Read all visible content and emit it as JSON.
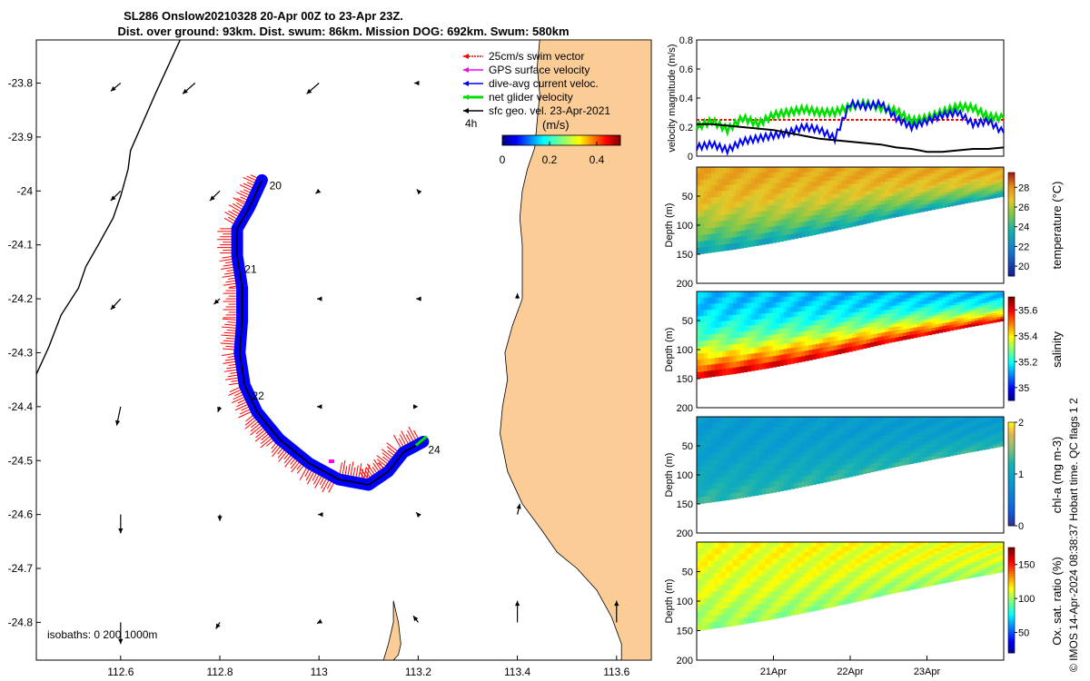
{
  "title": {
    "line1": "SL286 Onslow20210328 20-Apr 00Z to 23-Apr 23Z.",
    "line2": "Dist. over ground: 93km. Dist. swum: 86km. Mission DOG: 692km. Swum: 580km"
  },
  "chart_data": [
    {
      "type": "map",
      "name": "glider-track-map",
      "xlim": [
        112.43,
        113.67
      ],
      "ylim": [
        -24.87,
        -23.72
      ],
      "x_ticks": [
        "112.6",
        "112.8",
        "113",
        "113.2",
        "113.4",
        "113.6"
      ],
      "x_tick_values": [
        112.6,
        112.8,
        113.0,
        113.2,
        113.4,
        113.6
      ],
      "y_ticks": [
        "-23.8",
        "-23.9",
        "-24",
        "-24.1",
        "-24.2",
        "-24.3",
        "-24.4",
        "-24.5",
        "-24.6",
        "-24.7",
        "-24.8"
      ],
      "y_tick_values": [
        -23.8,
        -23.9,
        -24.0,
        -24.1,
        -24.2,
        -24.3,
        -24.4,
        -24.5,
        -24.6,
        -24.7,
        -24.8
      ],
      "track": [
        [
          112.885,
          -23.98
        ],
        [
          112.86,
          -24.03
        ],
        [
          112.835,
          -24.07
        ],
        [
          112.835,
          -24.12
        ],
        [
          112.845,
          -24.18
        ],
        [
          112.845,
          -24.24
        ],
        [
          112.84,
          -24.3
        ],
        [
          112.85,
          -24.36
        ],
        [
          112.875,
          -24.41
        ],
        [
          112.92,
          -24.46
        ],
        [
          112.98,
          -24.505
        ],
        [
          113.04,
          -24.535
        ],
        [
          113.1,
          -24.545
        ],
        [
          113.14,
          -24.52
        ],
        [
          113.17,
          -24.485
        ],
        [
          113.21,
          -24.465
        ]
      ],
      "day_labels": [
        {
          "text": "20",
          "lon": 112.9,
          "lat": -23.99
        },
        {
          "text": "21",
          "lon": 112.85,
          "lat": -24.145
        },
        {
          "text": "22",
          "lon": 112.865,
          "lat": -24.38
        },
        {
          "text": "24",
          "lon": 113.22,
          "lat": -24.48
        }
      ],
      "isobath_line": [
        [
          112.72,
          -23.72
        ],
        [
          112.67,
          -23.82
        ],
        [
          112.62,
          -23.925
        ],
        [
          112.615,
          -23.96
        ],
        [
          112.6,
          -24.01
        ],
        [
          112.585,
          -24.05
        ],
        [
          112.555,
          -24.1
        ],
        [
          112.53,
          -24.14
        ],
        [
          112.515,
          -24.18
        ],
        [
          112.48,
          -24.23
        ],
        [
          112.455,
          -24.29
        ],
        [
          112.43,
          -24.34
        ],
        [
          112.43,
          -24.4
        ]
      ],
      "coast_poly": [
        [
          113.67,
          -23.72
        ],
        [
          113.445,
          -23.72
        ],
        [
          113.44,
          -23.77
        ],
        [
          113.445,
          -23.82
        ],
        [
          113.44,
          -23.87
        ],
        [
          113.435,
          -23.92
        ],
        [
          113.42,
          -23.96
        ],
        [
          113.41,
          -24.0
        ],
        [
          113.405,
          -24.05
        ],
        [
          113.41,
          -24.1
        ],
        [
          113.41,
          -24.15
        ],
        [
          113.41,
          -24.2
        ],
        [
          113.39,
          -24.25
        ],
        [
          113.375,
          -24.3
        ],
        [
          113.38,
          -24.35
        ],
        [
          113.37,
          -24.4
        ],
        [
          113.365,
          -24.45
        ],
        [
          113.38,
          -24.52
        ],
        [
          113.41,
          -24.58
        ],
        [
          113.45,
          -24.63
        ],
        [
          113.48,
          -24.67
        ],
        [
          113.52,
          -24.7
        ],
        [
          113.56,
          -24.74
        ],
        [
          113.59,
          -24.79
        ],
        [
          113.61,
          -24.84
        ],
        [
          113.61,
          -24.87
        ],
        [
          113.67,
          -24.87
        ]
      ],
      "island_poly": [
        [
          113.15,
          -24.76
        ],
        [
          113.16,
          -24.8
        ],
        [
          113.165,
          -24.84
        ],
        [
          113.16,
          -24.86
        ],
        [
          113.15,
          -24.87
        ],
        [
          113.13,
          -24.87
        ],
        [
          113.14,
          -24.84
        ],
        [
          113.15,
          -24.8
        ]
      ],
      "sfc_vectors": [
        [
          112.6,
          -23.8,
          -0.02,
          -0.015
        ],
        [
          112.75,
          -23.8,
          -0.025,
          -0.02
        ],
        [
          113.0,
          -23.8,
          -0.025,
          -0.02
        ],
        [
          113.2,
          -23.8,
          -0.008,
          0.0
        ],
        [
          112.6,
          -24.0,
          -0.02,
          -0.018
        ],
        [
          112.8,
          -24.0,
          -0.02,
          -0.018
        ],
        [
          113.0,
          -24.0,
          -0.007,
          -0.005
        ],
        [
          113.2,
          -24.0,
          -0.003,
          0.003
        ],
        [
          112.6,
          -24.2,
          -0.02,
          -0.02
        ],
        [
          112.8,
          -24.2,
          -0.012,
          -0.01
        ],
        [
          113.0,
          -24.2,
          -0.004,
          0.0
        ],
        [
          113.2,
          -24.2,
          -0.004,
          0.0
        ],
        [
          113.4,
          -24.2,
          0.0,
          0.01
        ],
        [
          112.6,
          -24.4,
          -0.008,
          -0.035
        ],
        [
          112.8,
          -24.4,
          -0.004,
          -0.01
        ],
        [
          113.0,
          -24.4,
          -0.004,
          0.0
        ],
        [
          113.2,
          -24.4,
          0.0,
          0.0
        ],
        [
          112.6,
          -24.6,
          0.0,
          -0.035
        ],
        [
          112.8,
          -24.6,
          0.0,
          -0.012
        ],
        [
          113.0,
          -24.6,
          -0.002,
          0.0
        ],
        [
          113.2,
          -24.6,
          -0.004,
          0.004
        ],
        [
          113.4,
          -24.6,
          0.005,
          0.02
        ],
        [
          112.6,
          -24.8,
          0.0,
          -0.04
        ],
        [
          112.8,
          -24.8,
          -0.008,
          -0.012
        ],
        [
          113.0,
          -24.8,
          -0.004,
          -0.002
        ],
        [
          113.2,
          -24.8,
          -0.01,
          0.012
        ],
        [
          113.4,
          -24.8,
          0.0,
          0.04
        ],
        [
          113.6,
          -24.8,
          0.0,
          0.04
        ]
      ],
      "legend": [
        {
          "label": "25cm/s swim vector",
          "color": "#ff0000"
        },
        {
          "label": "GPS surface velocity",
          "color": "#ff00ff"
        },
        {
          "label": "dive-avg current veloc.",
          "color": "#0000ff"
        },
        {
          "label": "net glider velocity",
          "color": "#00e000"
        },
        {
          "label": "sfc geo. vel. 23-Apr-2021",
          "color": "#000000"
        }
      ],
      "legend_note": "4h",
      "colorbar": {
        "label": "(m/s)",
        "ticks": [
          "0",
          "0.2",
          "0.4"
        ],
        "tick_values": [
          0,
          0.2,
          0.4
        ],
        "range": [
          0,
          0.5
        ]
      },
      "isobaths_text": "isobaths: 0   200  1000m"
    },
    {
      "type": "line",
      "name": "velocity-timeseries",
      "ylabel": "velocity magnitude (m/s)",
      "ylim": [
        0,
        0.8
      ],
      "y_ticks": [
        "0",
        "0.2",
        "0.4",
        "0.6",
        "0.8"
      ],
      "y_tick_values": [
        0,
        0.2,
        0.4,
        0.6,
        0.8
      ],
      "xlim": [
        20.0,
        24.0
      ],
      "series": [
        {
          "name": "swim",
          "color": "#ff0000",
          "style": "dashed",
          "x": [
            20.0,
            24.0
          ],
          "values": [
            0.25,
            0.25
          ]
        },
        {
          "name": "net glider velocity",
          "color": "#00e000",
          "x": [
            20.0,
            20.2,
            20.4,
            20.6,
            20.8,
            21.0,
            21.2,
            21.4,
            21.6,
            21.8,
            22.0,
            22.2,
            22.4,
            22.6,
            22.8,
            23.0,
            23.2,
            23.4,
            23.6,
            23.8,
            24.0
          ],
          "values": [
            0.2,
            0.24,
            0.18,
            0.26,
            0.22,
            0.28,
            0.3,
            0.32,
            0.3,
            0.3,
            0.34,
            0.36,
            0.33,
            0.31,
            0.24,
            0.26,
            0.3,
            0.34,
            0.33,
            0.27,
            0.26
          ]
        },
        {
          "name": "dive-avg current veloc.",
          "color": "#0000ff",
          "x": [
            20.0,
            20.2,
            20.4,
            20.6,
            20.8,
            21.0,
            21.2,
            21.4,
            21.6,
            21.8,
            22.0,
            22.2,
            22.4,
            22.6,
            22.8,
            23.0,
            23.2,
            23.4,
            23.6,
            23.8,
            24.0
          ],
          "values": [
            0.06,
            0.08,
            0.04,
            0.1,
            0.12,
            0.14,
            0.16,
            0.2,
            0.18,
            0.12,
            0.36,
            0.34,
            0.36,
            0.26,
            0.2,
            0.24,
            0.28,
            0.3,
            0.22,
            0.24,
            0.16
          ]
        },
        {
          "name": "sfc geo. vel.",
          "color": "#000000",
          "x": [
            20.0,
            20.2,
            20.4,
            20.6,
            20.8,
            21.0,
            21.2,
            21.4,
            21.6,
            21.8,
            22.0,
            22.2,
            22.4,
            22.6,
            22.8,
            23.0,
            23.2,
            23.4,
            23.6,
            23.8,
            24.0
          ],
          "values": [
            0.22,
            0.22,
            0.21,
            0.2,
            0.19,
            0.18,
            0.16,
            0.14,
            0.12,
            0.11,
            0.1,
            0.09,
            0.08,
            0.06,
            0.05,
            0.03,
            0.03,
            0.04,
            0.05,
            0.05,
            0.06
          ]
        }
      ]
    },
    {
      "type": "heatmap",
      "name": "temperature-section",
      "ylabel": "Depth (m)",
      "colorbar_label": "temperature (°C)",
      "cb_ticks": [
        "28",
        "26",
        "24",
        "22",
        "20"
      ],
      "cb_tick_values": [
        28,
        26,
        24,
        22,
        20
      ],
      "cb_range": [
        19,
        29.5
      ],
      "y_ticks": [
        "50",
        "100",
        "150",
        "200"
      ],
      "y_tick_values": [
        50,
        100,
        150,
        200
      ],
      "depth_range": [
        0,
        200
      ],
      "colormap": "parula",
      "surface_value": 27.6,
      "bottom_value": 23.0
    },
    {
      "type": "heatmap",
      "name": "salinity-section",
      "ylabel": "Depth (m)",
      "colorbar_label": "salinity",
      "cb_ticks": [
        "35.6",
        "35.4",
        "35.2",
        "35"
      ],
      "cb_tick_values": [
        35.6,
        35.4,
        35.2,
        35.0
      ],
      "cb_range": [
        34.9,
        35.7
      ],
      "y_ticks": [
        "50",
        "100",
        "150",
        "200"
      ],
      "y_tick_values": [
        50,
        100,
        150,
        200
      ],
      "depth_range": [
        0,
        200
      ],
      "colormap": "jet",
      "surface_value": 35.15,
      "bottom_value": 35.65
    },
    {
      "type": "heatmap",
      "name": "chla-section",
      "ylabel": "Depth (m)",
      "colorbar_label": "chl-a (mg m-3)",
      "cb_ticks": [
        "2",
        "1",
        "0"
      ],
      "cb_tick_values": [
        2,
        1,
        0
      ],
      "cb_range": [
        0,
        2
      ],
      "y_ticks": [
        "50",
        "100",
        "150",
        "200"
      ],
      "y_tick_values": [
        50,
        100,
        150,
        200
      ],
      "depth_range": [
        0,
        200
      ],
      "colormap": "parula",
      "surface_value": 0.9,
      "bottom_value": 1.3
    },
    {
      "type": "heatmap",
      "name": "oxygen-section",
      "ylabel": "Depth (m)",
      "colorbar_label": "Ox. sat. ratio (%)",
      "cb_ticks": [
        "150",
        "100",
        "50"
      ],
      "cb_tick_values": [
        150,
        100,
        50
      ],
      "cb_range": [
        20,
        175
      ],
      "y_ticks": [
        "50",
        "100",
        "150",
        "200"
      ],
      "y_tick_values": [
        50,
        100,
        150,
        200
      ],
      "depth_range": [
        0,
        200
      ],
      "colormap": "jet",
      "surface_value": 115,
      "bottom_value": 100
    }
  ],
  "time_axis": {
    "ticks": [
      "21Apr",
      "22Apr",
      "23Apr"
    ],
    "tick_values": [
      21,
      22,
      23
    ],
    "range": [
      20.0,
      24.0
    ]
  },
  "bottom_profile": {
    "x": [
      20.0,
      20.5,
      21.0,
      21.5,
      22.0,
      22.5,
      23.0,
      23.5,
      24.0
    ],
    "depth": [
      150,
      141,
      130,
      117,
      103,
      88,
      75,
      62,
      50
    ]
  },
  "footer_credit": "© IMOS 14-Apr-2024 08:38:37 Hobart time. QC flags 1  2",
  "colors": {
    "land": "#fccc96",
    "track_blue": "#0000ff",
    "swim_red": "#ff0000"
  }
}
